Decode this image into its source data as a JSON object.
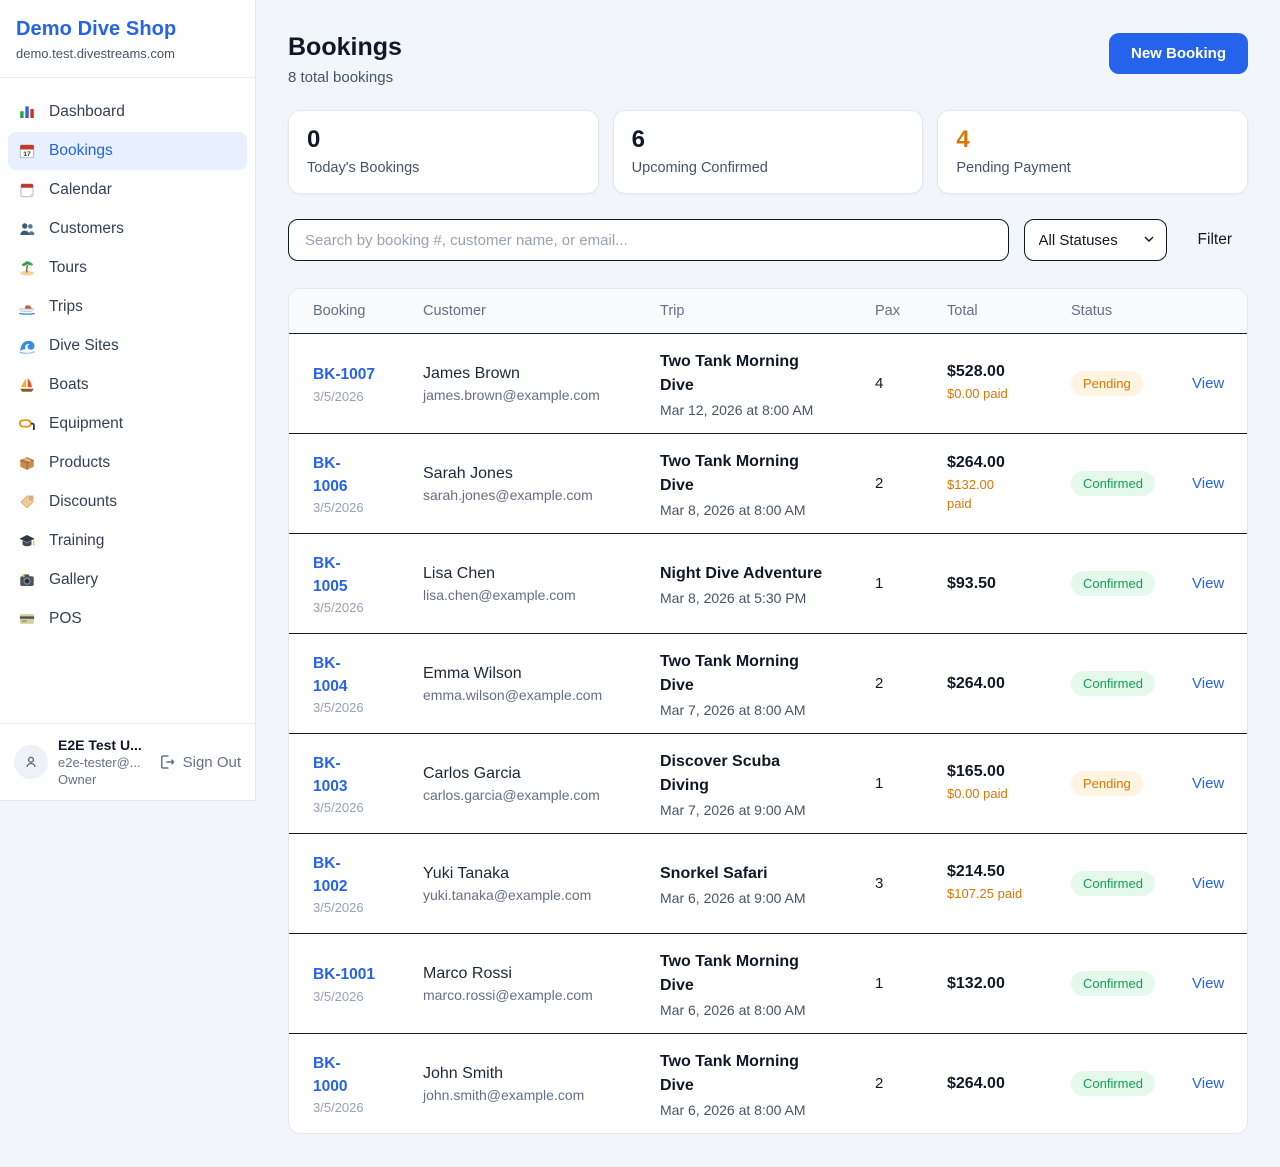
{
  "sidebar": {
    "brand": {
      "name": "Demo Dive Shop",
      "domain": "demo.test.divestreams.com"
    },
    "items": [
      {
        "label": "Dashboard",
        "icon": "dashboard-chart-icon",
        "active": false
      },
      {
        "label": "Bookings",
        "icon": "bookings-calendar-icon",
        "active": true
      },
      {
        "label": "Calendar",
        "icon": "calendar-icon",
        "active": false
      },
      {
        "label": "Customers",
        "icon": "customers-people-icon",
        "active": false
      },
      {
        "label": "Tours",
        "icon": "tours-island-icon",
        "active": false
      },
      {
        "label": "Trips",
        "icon": "trips-speedboat-icon",
        "active": false
      },
      {
        "label": "Dive Sites",
        "icon": "dive-sites-wave-icon",
        "active": false
      },
      {
        "label": "Boats",
        "icon": "boats-sailboat-icon",
        "active": false
      },
      {
        "label": "Equipment",
        "icon": "equipment-mask-icon",
        "active": false
      },
      {
        "label": "Products",
        "icon": "products-box-icon",
        "active": false
      },
      {
        "label": "Discounts",
        "icon": "discounts-tag-icon",
        "active": false
      },
      {
        "label": "Training",
        "icon": "training-cap-icon",
        "active": false
      },
      {
        "label": "Gallery",
        "icon": "gallery-camera-icon",
        "active": false
      },
      {
        "label": "POS",
        "icon": "pos-card-icon",
        "active": false
      }
    ],
    "user": {
      "name": "E2E Test U...",
      "email": "e2e-tester@...",
      "role": "Owner",
      "sign_out_label": "Sign Out"
    }
  },
  "header": {
    "title": "Bookings",
    "subtitle": "8 total bookings",
    "new_booking_label": "New Booking"
  },
  "stats": [
    {
      "value": "0",
      "label": "Today's Bookings",
      "value_color": "#101828"
    },
    {
      "value": "6",
      "label": "Upcoming Confirmed",
      "value_color": "#101828"
    },
    {
      "value": "4",
      "label": "Pending Payment",
      "value_color": "#d97706"
    }
  ],
  "toolbar": {
    "search_placeholder": "Search by booking #, customer name, or email...",
    "status_filter_value": "All Statuses",
    "filter_label": "Filter"
  },
  "table": {
    "columns": [
      "Booking",
      "Customer",
      "Trip",
      "Pax",
      "Total",
      "Status"
    ],
    "view_label": "View",
    "rows": [
      {
        "booking_id": "BK-1007",
        "booking_date": "3/5/2026",
        "customer_name": "James Brown",
        "customer_email": "james.brown@example.com",
        "trip_name": "Two Tank Morning\nDive",
        "trip_datetime": "Mar 12, 2026 at 8:00 AM",
        "pax": "4",
        "total": "$528.00",
        "paid": "$0.00 paid",
        "status": "Pending"
      },
      {
        "booking_id": "BK-\n1006",
        "booking_date": "3/5/2026",
        "customer_name": "Sarah Jones",
        "customer_email": "sarah.jones@example.com",
        "trip_name": "Two Tank Morning\nDive",
        "trip_datetime": "Mar 8, 2026 at 8:00 AM",
        "pax": "2",
        "total": "$264.00",
        "paid": "$132.00\npaid",
        "status": "Confirmed"
      },
      {
        "booking_id": "BK-\n1005",
        "booking_date": "3/5/2026",
        "customer_name": "Lisa Chen",
        "customer_email": "lisa.chen@example.com",
        "trip_name": "Night Dive Adventure",
        "trip_datetime": "Mar 8, 2026 at 5:30 PM",
        "pax": "1",
        "total": "$93.50",
        "paid": "",
        "status": "Confirmed"
      },
      {
        "booking_id": "BK-\n1004",
        "booking_date": "3/5/2026",
        "customer_name": "Emma Wilson",
        "customer_email": "emma.wilson@example.com",
        "trip_name": "Two Tank Morning\nDive",
        "trip_datetime": "Mar 7, 2026 at 8:00 AM",
        "pax": "2",
        "total": "$264.00",
        "paid": "",
        "status": "Confirmed"
      },
      {
        "booking_id": "BK-\n1003",
        "booking_date": "3/5/2026",
        "customer_name": "Carlos Garcia",
        "customer_email": "carlos.garcia@example.com",
        "trip_name": "Discover Scuba\nDiving",
        "trip_datetime": "Mar 7, 2026 at 9:00 AM",
        "pax": "1",
        "total": "$165.00",
        "paid": "$0.00 paid",
        "status": "Pending"
      },
      {
        "booking_id": "BK-\n1002",
        "booking_date": "3/5/2026",
        "customer_name": "Yuki Tanaka",
        "customer_email": "yuki.tanaka@example.com",
        "trip_name": "Snorkel Safari",
        "trip_datetime": "Mar 6, 2026 at 9:00 AM",
        "pax": "3",
        "total": "$214.50",
        "paid": "$107.25 paid",
        "status": "Confirmed"
      },
      {
        "booking_id": "BK-1001",
        "booking_date": "3/5/2026",
        "customer_name": "Marco Rossi",
        "customer_email": "marco.rossi@example.com",
        "trip_name": "Two Tank Morning\nDive",
        "trip_datetime": "Mar 6, 2026 at 8:00 AM",
        "pax": "1",
        "total": "$132.00",
        "paid": "",
        "status": "Confirmed"
      },
      {
        "booking_id": "BK-\n1000",
        "booking_date": "3/5/2026",
        "customer_name": "John Smith",
        "customer_email": "john.smith@example.com",
        "trip_name": "Two Tank Morning\nDive",
        "trip_datetime": "Mar 6, 2026 at 8:00 AM",
        "pax": "2",
        "total": "$264.00",
        "paid": "",
        "status": "Confirmed"
      }
    ]
  },
  "colors": {
    "accent_blue": "#2563eb",
    "pending_text": "#d97706",
    "pending_bg": "#fdf5e1",
    "confirmed_text": "#12a150",
    "confirmed_bg": "#e5f8ec"
  }
}
